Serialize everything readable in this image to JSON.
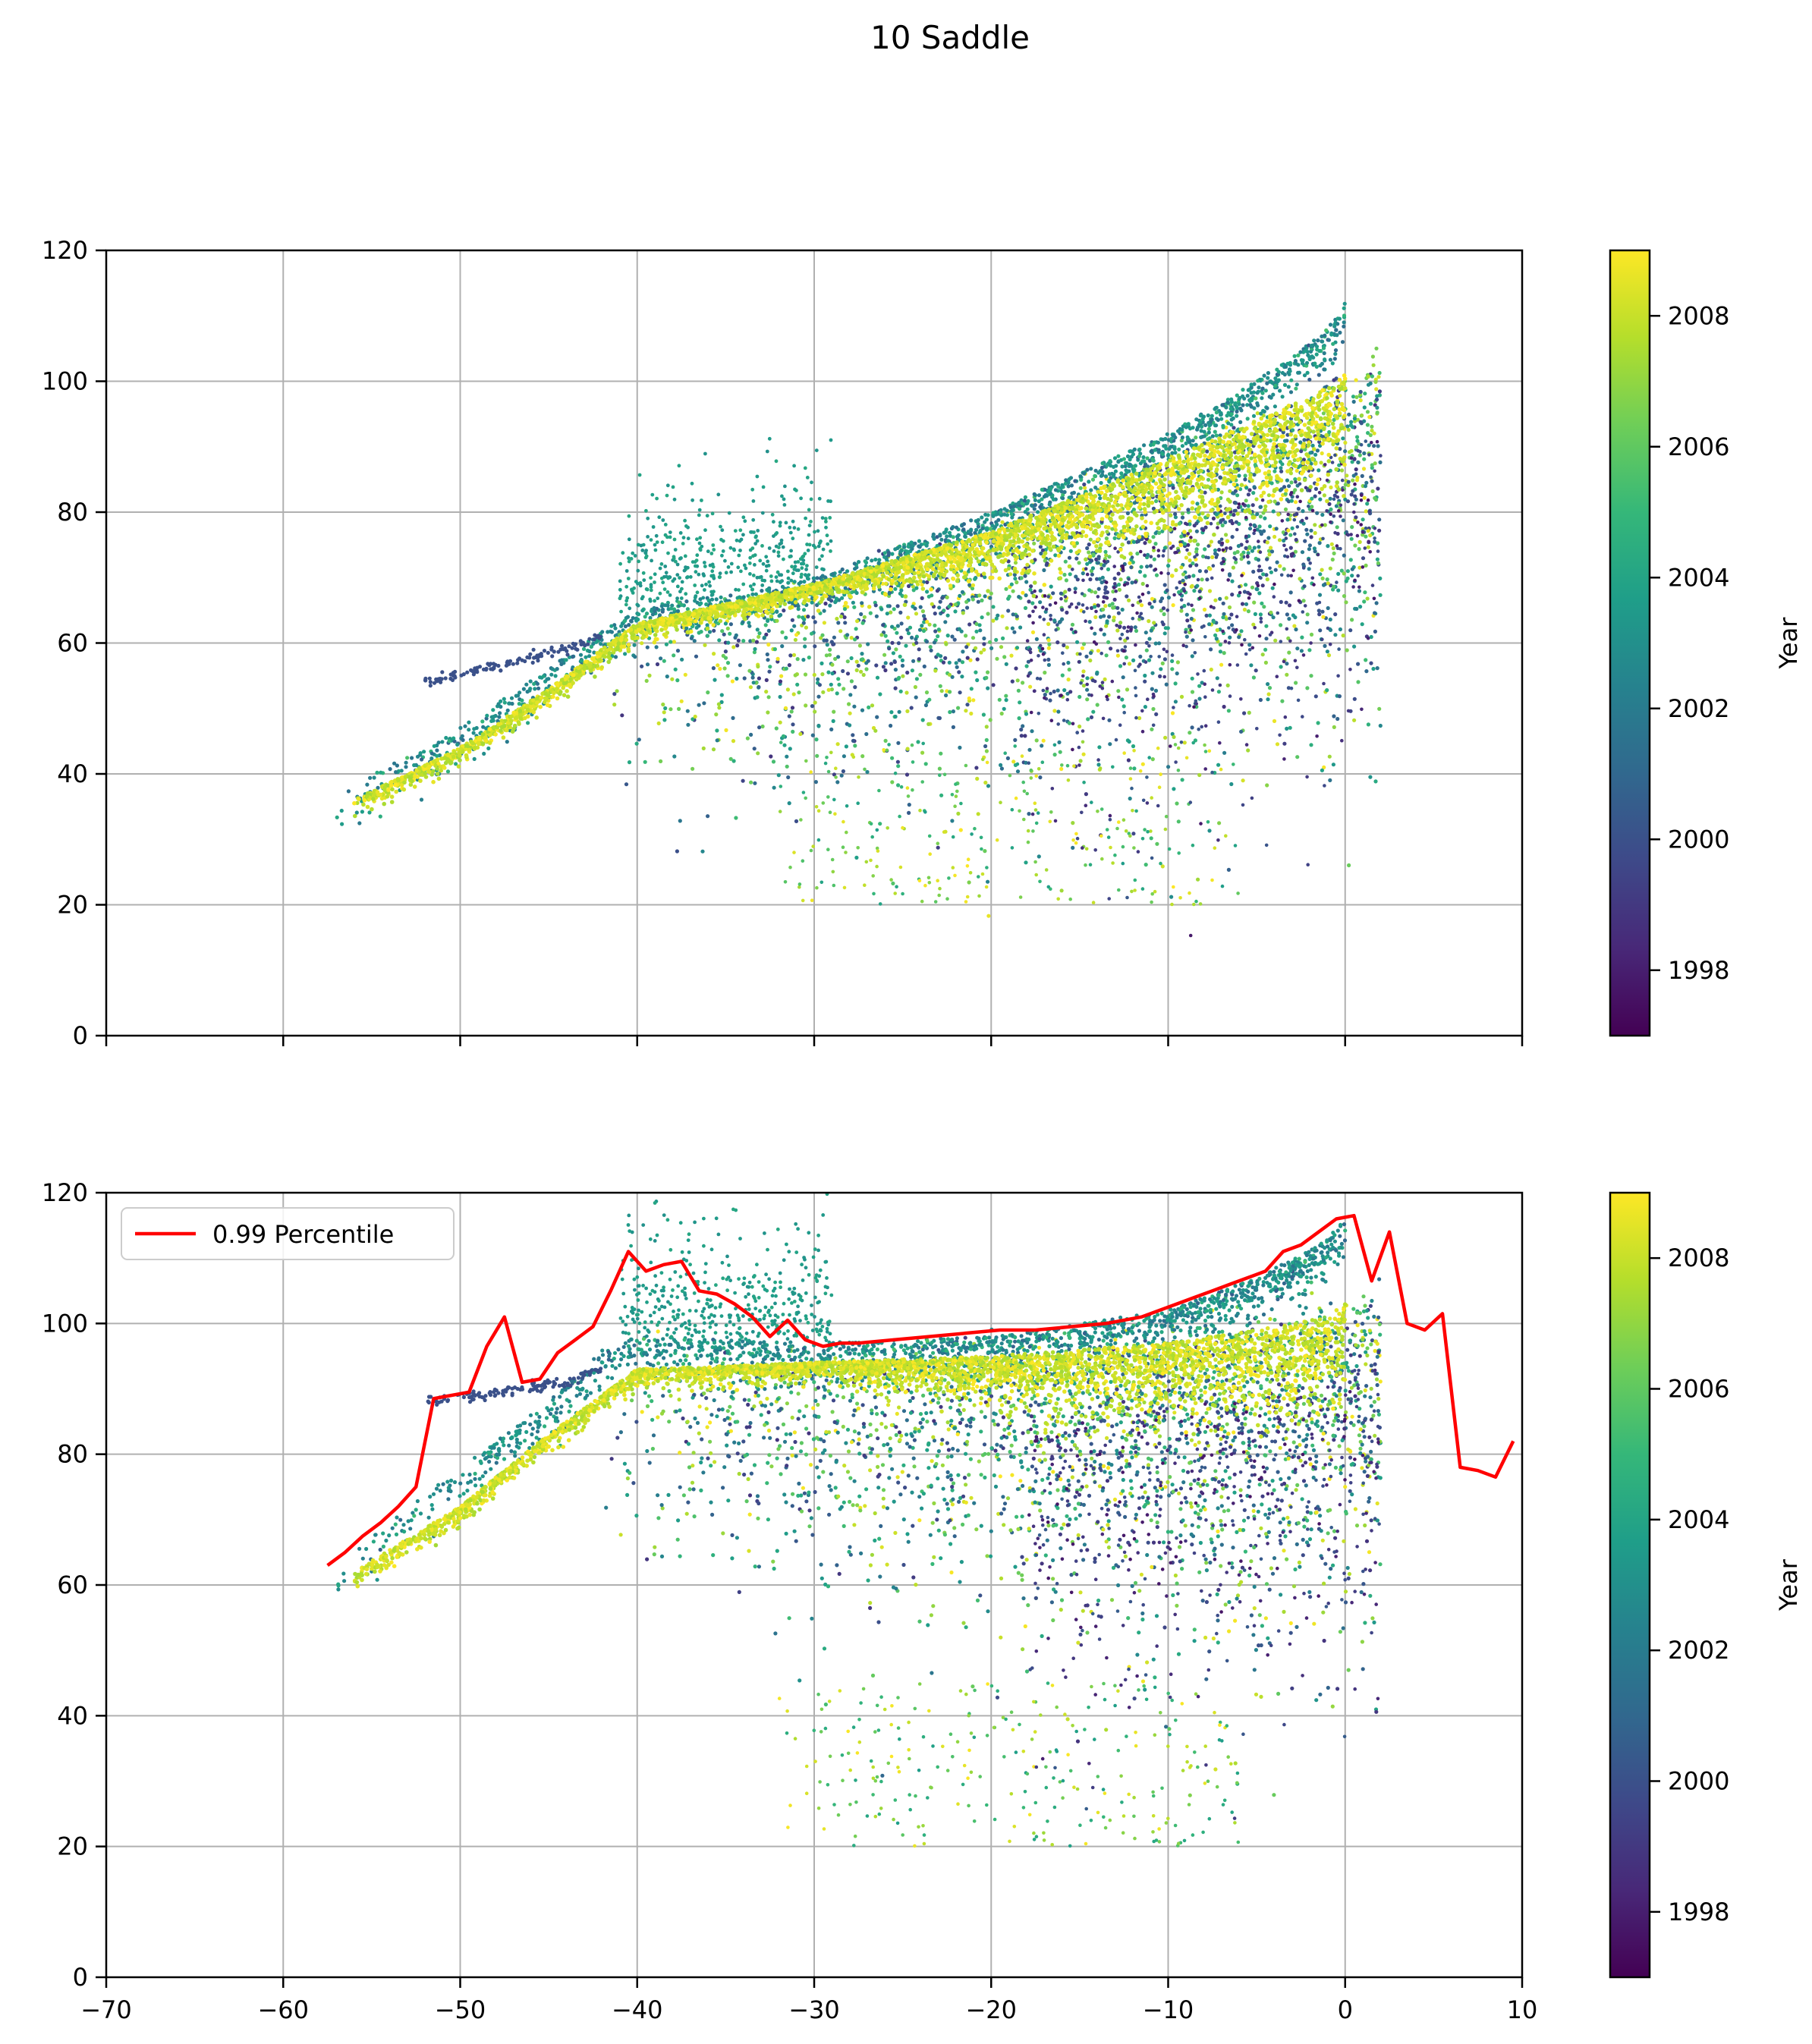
{
  "figure": {
    "title": "10 Saddle"
  },
  "colors": {
    "percentile_line": "#ff0000",
    "grid": "#b0b0b0",
    "viridis": [
      "#440154",
      "#482878",
      "#3e4989",
      "#31688e",
      "#26828e",
      "#1f9e89",
      "#35b779",
      "#6ece58",
      "#b5de2b",
      "#fde725"
    ]
  },
  "chart_data": [
    {
      "type": "scatter",
      "title": "",
      "xlabel": "",
      "ylabel": "",
      "xlim": [
        -70,
        10
      ],
      "ylim": [
        0,
        120
      ],
      "xticks": [
        -70,
        -60,
        -50,
        -40,
        -30,
        -20,
        -10,
        0,
        10
      ],
      "xtick_labels": [],
      "yticks": [
        0,
        20,
        40,
        60,
        80,
        100,
        120
      ],
      "ytick_labels": [
        "0",
        "20",
        "40",
        "60",
        "80",
        "100",
        "120"
      ],
      "grid": true,
      "color_by": "Year",
      "colorbar": {
        "label": "Year",
        "range": [
          1997,
          2009
        ],
        "ticks": [
          1998,
          2000,
          2002,
          2004,
          2006,
          2008
        ],
        "tick_labels": [
          "1998",
          "2000",
          "2002",
          "2004",
          "2006",
          "2008"
        ]
      },
      "ridge_by_year": [
        {
          "year": 2000,
          "x": [
            -52,
            -44,
            -42
          ],
          "y": [
            54,
            59,
            61
          ]
        },
        {
          "year": 2003.5,
          "x": [
            -57,
            -50,
            -45,
            -42,
            -40,
            -30,
            -20,
            -10,
            -5,
            -1,
            0
          ],
          "y": [
            37,
            47,
            56,
            62,
            65,
            70,
            80,
            92,
            100,
            108,
            112
          ]
        },
        {
          "year": 2008.5,
          "x": [
            -56,
            -50,
            -45,
            -42,
            -40,
            -30,
            -20,
            -10,
            -5,
            -1,
            0
          ],
          "y": [
            36,
            44,
            53,
            59,
            63,
            69,
            77,
            88,
            94,
            99,
            101
          ]
        }
      ]
    },
    {
      "type": "scatter",
      "title": "",
      "xlabel": "",
      "ylabel": "",
      "xlim": [
        -70,
        10
      ],
      "ylim": [
        0,
        120
      ],
      "xticks": [
        -70,
        -60,
        -50,
        -40,
        -30,
        -20,
        -10,
        0,
        10
      ],
      "xtick_labels": [
        "−70",
        "−60",
        "−50",
        "−40",
        "−30",
        "−20",
        "−10",
        "0",
        "10"
      ],
      "yticks": [
        0,
        20,
        40,
        60,
        80,
        100,
        120
      ],
      "ytick_labels": [
        "0",
        "20",
        "40",
        "60",
        "80",
        "100",
        "120"
      ],
      "grid": true,
      "color_by": "Year",
      "colorbar": {
        "label": "Year",
        "range": [
          1997,
          2009
        ],
        "ticks": [
          1998,
          2000,
          2002,
          2004,
          2006,
          2008
        ],
        "tick_labels": [
          "1998",
          "2000",
          "2002",
          "2004",
          "2006",
          "2008"
        ]
      },
      "ridge_by_year": [
        {
          "year": 2000,
          "x": [
            -52,
            -44,
            -42
          ],
          "y": [
            88,
            91,
            93
          ]
        },
        {
          "year": 2003.5,
          "x": [
            -57,
            -50,
            -45,
            -42,
            -40,
            -30,
            -20,
            -10,
            -5,
            -1,
            0
          ],
          "y": [
            63,
            78,
            88,
            96,
            98,
            97,
            98,
            102,
            107,
            113,
            116
          ]
        },
        {
          "year": 2008.5,
          "x": [
            -56,
            -50,
            -45,
            -42,
            -40,
            -30,
            -20,
            -10,
            -5,
            -1,
            0
          ],
          "y": [
            62,
            72,
            83,
            89,
            93,
            94,
            95,
            97,
            99,
            101,
            103
          ]
        }
      ],
      "legend": {
        "entries": [
          "0.99 Percentile"
        ],
        "placement": "upper-left"
      },
      "series": [
        {
          "name": "0.99 Percentile",
          "type": "line",
          "x": [
            -57.5,
            -56.5,
            -55.5,
            -54.5,
            -53.5,
            -52.5,
            -51.5,
            -49.5,
            -48.5,
            -47.5,
            -46.5,
            -45.5,
            -44.5,
            -43.5,
            -42.5,
            -41.5,
            -40.5,
            -39.5,
            -38.5,
            -37.5,
            -36.5,
            -35.5,
            -34.5,
            -33.5,
            -32.5,
            -31.5,
            -30.5,
            -29.5,
            -28.5,
            -27.5,
            -25.5,
            -23.5,
            -21.5,
            -19.5,
            -17.5,
            -15.5,
            -13.5,
            -11.5,
            -9.5,
            -8.5,
            -7.5,
            -6.5,
            -5.5,
            -4.5,
            -3.5,
            -2.5,
            -1.5,
            -0.5,
            0.5,
            1.5,
            2.5,
            3.5,
            4.5,
            5.5,
            6.5,
            7.5,
            8.5,
            9.5
          ],
          "y": [
            63,
            65,
            67.5,
            69.5,
            72,
            75,
            88.5,
            89.5,
            96.5,
            101,
            91,
            91.5,
            95.5,
            97.5,
            99.5,
            105,
            111,
            108,
            109,
            109.5,
            105,
            104.5,
            103,
            101,
            98,
            100.5,
            97.5,
            96.5,
            97,
            97,
            97.5,
            98,
            98.5,
            99,
            99,
            99.5,
            100,
            101,
            103,
            104,
            105,
            106,
            107,
            108,
            111,
            112,
            114,
            116,
            116.5,
            106.5,
            114,
            100,
            99,
            101.5,
            78,
            77.5,
            76.5,
            82
          ]
        }
      ]
    }
  ]
}
